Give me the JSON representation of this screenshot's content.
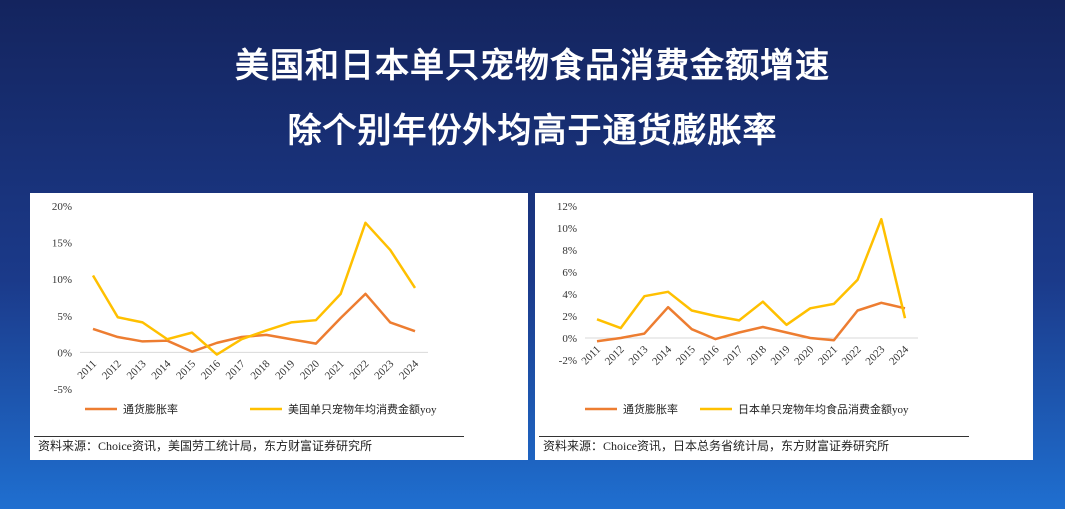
{
  "title": {
    "line1": "美国和日本单只宠物食品消费金额增速",
    "line2": "除个别年份外均高于通货膨胀率"
  },
  "colors": {
    "inflation": "#ED7D31",
    "pet": "#FFC000"
  },
  "chart_data": [
    {
      "type": "line",
      "categories": [
        "2011",
        "2012",
        "2013",
        "2014",
        "2015",
        "2016",
        "2017",
        "2018",
        "2019",
        "2020",
        "2021",
        "2022",
        "2023",
        "2024"
      ],
      "yticks": [
        "20%",
        "15%",
        "10%",
        "5%",
        "0%",
        "-5%"
      ],
      "ylim": [
        -5,
        20
      ],
      "ytick_values": [
        20,
        15,
        10,
        5,
        0,
        -5
      ],
      "series": [
        {
          "name": "通货膨胀率",
          "values": [
            3.2,
            2.1,
            1.5,
            1.6,
            0.1,
            1.3,
            2.1,
            2.4,
            1.8,
            1.2,
            4.7,
            8.0,
            4.1,
            2.9
          ]
        },
        {
          "name": "美国单只宠物年均消费金额yoy",
          "values": [
            10.5,
            4.8,
            4.1,
            1.8,
            2.7,
            -0.3,
            1.8,
            3.0,
            4.1,
            4.4,
            8.0,
            17.7,
            14.0,
            8.8
          ]
        }
      ],
      "source": "资料来源：Choice资讯，美国劳工统计局，东方财富证券研究所"
    },
    {
      "type": "line",
      "categories": [
        "2011",
        "2012",
        "2013",
        "2014",
        "2015",
        "2016",
        "2017",
        "2018",
        "2019",
        "2020",
        "2021",
        "2022",
        "2023",
        "2024"
      ],
      "yticks": [
        "12%",
        "10%",
        "8%",
        "6%",
        "4%",
        "2%",
        "0%",
        "-2%"
      ],
      "ylim": [
        -2,
        12
      ],
      "ytick_values": [
        12,
        10,
        8,
        6,
        4,
        2,
        0,
        -2
      ],
      "series": [
        {
          "name": "通货膨胀率",
          "values": [
            -0.3,
            0,
            0.4,
            2.8,
            0.8,
            -0.1,
            0.5,
            1.0,
            0.5,
            0,
            -0.2,
            2.5,
            3.2,
            2.7
          ]
        },
        {
          "name": "日本单只宠物年均食品消费金额yoy",
          "values": [
            1.7,
            0.9,
            3.8,
            4.2,
            2.5,
            2.0,
            1.6,
            3.3,
            1.2,
            2.7,
            3.1,
            5.3,
            10.8,
            1.8
          ]
        }
      ],
      "source": "资料来源：Choice资讯，日本总务省统计局，东方财富证券研究所"
    }
  ]
}
